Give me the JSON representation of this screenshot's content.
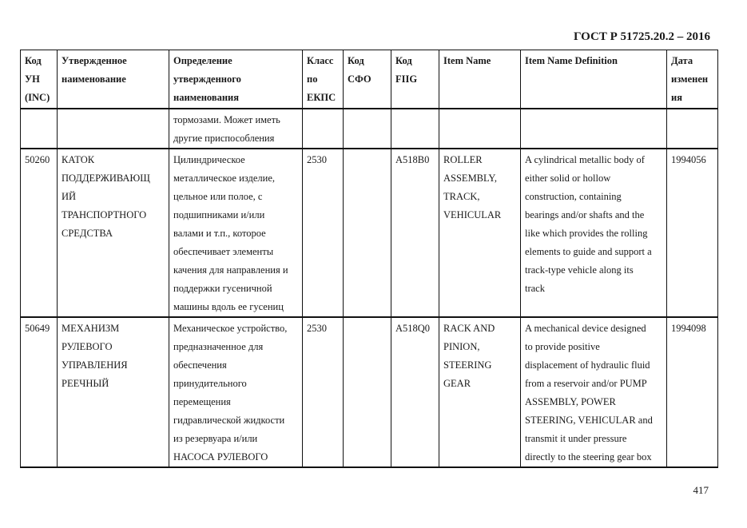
{
  "header": {
    "standard": "ГОСТ Р 51725.20.2 – 2016"
  },
  "page_number": "417",
  "table": {
    "columns": [
      [
        "Код",
        "УН",
        "(INC)"
      ],
      [
        "Утвержденное",
        "наименование"
      ],
      [
        "Определение",
        "утвержденного",
        "наименования"
      ],
      [
        "Класс",
        "по",
        "ЕКПС"
      ],
      [
        "Код",
        "СФО"
      ],
      [
        "Код",
        "FIIG"
      ],
      [
        "Item Name"
      ],
      [
        "Item Name Definition"
      ],
      [
        "Дата",
        "изменен",
        "ия"
      ]
    ],
    "rows": [
      [
        [],
        [],
        [
          "тормозами. Может иметь",
          "другие приспособления"
        ],
        [],
        [],
        [],
        [],
        [],
        []
      ],
      [
        [
          "50260"
        ],
        [
          "КАТОК",
          "ПОДДЕРЖИВАЮЩ",
          "ИЙ",
          "ТРАНСПОРТНОГО",
          "СРЕДСТВА"
        ],
        [
          "Цилиндрическое",
          "металлическое изделие,",
          "цельное или полое, с",
          "подшипниками и/или",
          "валами и т.п., которое",
          "обеспечивает элементы",
          "качения для направления и",
          "поддержки гусеничной",
          "машины вдоль ее гусениц"
        ],
        [
          "2530"
        ],
        [],
        [
          "A518B0"
        ],
        [
          "ROLLER",
          "ASSEMBLY,",
          "TRACK,",
          "VEHICULAR"
        ],
        [
          "A cylindrical metallic body of",
          "either solid or hollow",
          "construction, containing",
          "bearings and/or shafts and the",
          "like which provides the rolling",
          "elements to guide and support a",
          "track-type vehicle along its",
          "track"
        ],
        [
          "1994056"
        ]
      ],
      [
        [
          "50649"
        ],
        [
          "МЕХАНИЗМ",
          "РУЛЕВОГО",
          "УПРАВЛЕНИЯ",
          "РЕЕЧНЫЙ"
        ],
        [
          "Механическое устройство,",
          "предназначенное для",
          "обеспечения",
          "принудительного",
          "перемещения",
          "гидравлической жидкости",
          "из резервуара и/или",
          "НАСОСА РУЛЕВОГО"
        ],
        [
          "2530"
        ],
        [],
        [
          "A518Q0"
        ],
        [
          "RACK AND",
          "PINION,",
          "STEERING",
          "GEAR"
        ],
        [
          "A mechanical device designed",
          "to provide positive",
          "displacement of hydraulic fluid",
          "from a reservoir and/or PUMP",
          "ASSEMBLY, POWER",
          "STEERING, VEHICULAR and",
          "transmit it under pressure",
          "directly to the steering gear box"
        ],
        [
          "1994098"
        ]
      ]
    ]
  }
}
